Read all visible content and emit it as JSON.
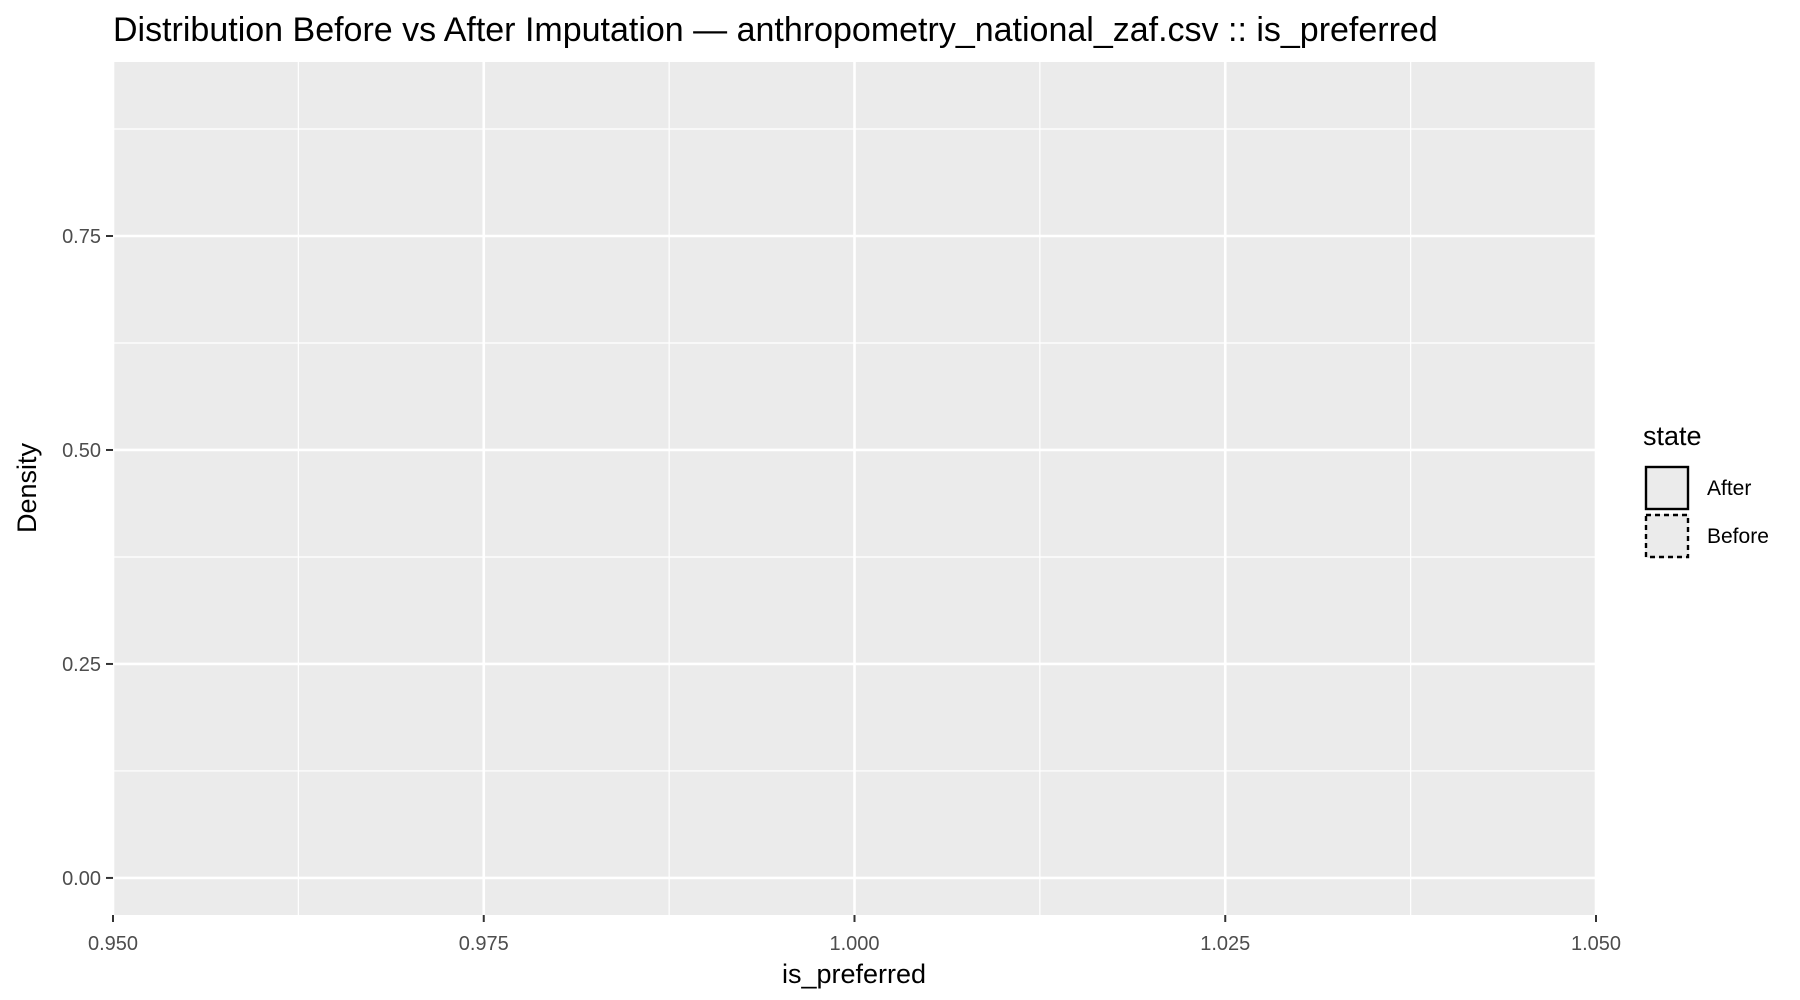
{
  "chart_data": {
    "type": "area",
    "title": "Distribution Before vs After Imputation — anthropometry_national_zaf.csv :: is_preferred",
    "xlabel": "is_preferred",
    "ylabel": "Density",
    "xlim": [
      0.95,
      1.05
    ],
    "ylim": [
      -0.0433,
      0.9533
    ],
    "x_ticks": [
      {
        "value": 0.95,
        "label": "0.950"
      },
      {
        "value": 0.975,
        "label": "0.975"
      },
      {
        "value": 1.0,
        "label": "1.000"
      },
      {
        "value": 1.025,
        "label": "1.025"
      },
      {
        "value": 1.05,
        "label": "1.050"
      }
    ],
    "y_ticks": [
      {
        "value": 0.0,
        "label": "0.00"
      },
      {
        "value": 0.25,
        "label": "0.25"
      },
      {
        "value": 0.5,
        "label": "0.50"
      },
      {
        "value": 0.75,
        "label": "0.75"
      }
    ],
    "x_minor": [
      0.9625,
      0.9875,
      1.0125,
      1.0375
    ],
    "y_minor": [
      0.125,
      0.375,
      0.625,
      0.875
    ],
    "grid": true,
    "panel_background": "#EBEBEB",
    "legend": {
      "title": "state",
      "placement": "right",
      "entries": [
        {
          "label": "After",
          "linetype": "solid"
        },
        {
          "label": "Before",
          "linetype": "dashed"
        }
      ]
    },
    "series": []
  }
}
